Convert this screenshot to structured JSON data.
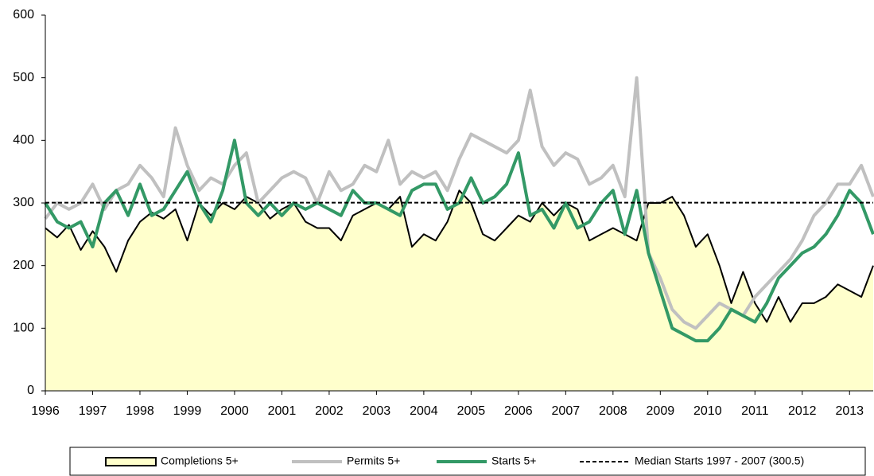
{
  "chart_data": {
    "type": "line",
    "x": [
      1996,
      1996.25,
      1996.5,
      1996.75,
      1997,
      1997.25,
      1997.5,
      1997.75,
      1998,
      1998.25,
      1998.5,
      1998.75,
      1999,
      1999.25,
      1999.5,
      1999.75,
      2000,
      2000.25,
      2000.5,
      2000.75,
      2001,
      2001.25,
      2001.5,
      2001.75,
      2002,
      2002.25,
      2002.5,
      2002.75,
      2003,
      2003.25,
      2003.5,
      2003.75,
      2004,
      2004.25,
      2004.5,
      2004.75,
      2005,
      2005.25,
      2005.5,
      2005.75,
      2006,
      2006.25,
      2006.5,
      2006.75,
      2007,
      2007.25,
      2007.5,
      2007.75,
      2008,
      2008.25,
      2008.5,
      2008.75,
      2009,
      2009.25,
      2009.5,
      2009.75,
      2010,
      2010.25,
      2010.5,
      2010.75,
      2011,
      2011.25,
      2011.5,
      2011.75,
      2012,
      2012.25,
      2012.5,
      2012.75,
      2013,
      2013.25,
      2013.5
    ],
    "series": [
      {
        "name": "Completions 5+",
        "kind": "area",
        "color": "#000000",
        "fill": "#ffffcc",
        "values": [
          260,
          245,
          265,
          225,
          255,
          230,
          190,
          240,
          270,
          285,
          275,
          290,
          240,
          300,
          280,
          300,
          290,
          310,
          300,
          275,
          290,
          300,
          270,
          260,
          260,
          240,
          280,
          290,
          300,
          290,
          310,
          230,
          250,
          240,
          270,
          320,
          300,
          250,
          240,
          260,
          280,
          270,
          300,
          280,
          300,
          290,
          240,
          250,
          260,
          250,
          240,
          300,
          300,
          310,
          280,
          230,
          250,
          200,
          140,
          190,
          140,
          110,
          150,
          110,
          140,
          140,
          150,
          170,
          160,
          150,
          200
        ]
      },
      {
        "name": "Permits 5+",
        "kind": "line",
        "color": "#c0c0c0",
        "values": [
          275,
          300,
          290,
          300,
          330,
          290,
          320,
          330,
          360,
          340,
          310,
          420,
          360,
          320,
          340,
          330,
          360,
          380,
          300,
          320,
          340,
          350,
          340,
          300,
          350,
          320,
          330,
          360,
          350,
          400,
          330,
          350,
          340,
          350,
          320,
          370,
          410,
          400,
          390,
          380,
          400,
          480,
          390,
          360,
          380,
          370,
          330,
          340,
          360,
          310,
          500,
          220,
          180,
          130,
          110,
          100,
          120,
          140,
          130,
          120,
          150,
          170,
          190,
          210,
          240,
          280,
          300,
          330,
          330,
          360,
          310
        ]
      },
      {
        "name": "Starts 5+",
        "kind": "line",
        "color": "#339966",
        "values": [
          300,
          270,
          260,
          270,
          230,
          300,
          320,
          280,
          330,
          280,
          290,
          320,
          350,
          300,
          270,
          320,
          400,
          300,
          280,
          300,
          280,
          300,
          290,
          300,
          290,
          280,
          320,
          300,
          300,
          290,
          280,
          320,
          330,
          330,
          290,
          300,
          340,
          300,
          310,
          330,
          380,
          280,
          290,
          260,
          300,
          260,
          270,
          300,
          320,
          250,
          320,
          220,
          160,
          100,
          90,
          80,
          80,
          100,
          130,
          120,
          110,
          140,
          180,
          200,
          220,
          230,
          250,
          280,
          320,
          300,
          250
        ]
      }
    ],
    "median": {
      "name": "Median Starts 1997 - 2007 (300.5)",
      "value": 300.5,
      "color": "#000000"
    },
    "xlim": [
      1996,
      2013.5
    ],
    "xticks": [
      1996,
      1997,
      1998,
      1999,
      2000,
      2001,
      2002,
      2003,
      2004,
      2005,
      2006,
      2007,
      2008,
      2009,
      2010,
      2011,
      2012,
      2013
    ],
    "ylim": [
      0,
      600
    ],
    "yticks": [
      0,
      100,
      200,
      300,
      400,
      500,
      600
    ],
    "grid": false
  }
}
